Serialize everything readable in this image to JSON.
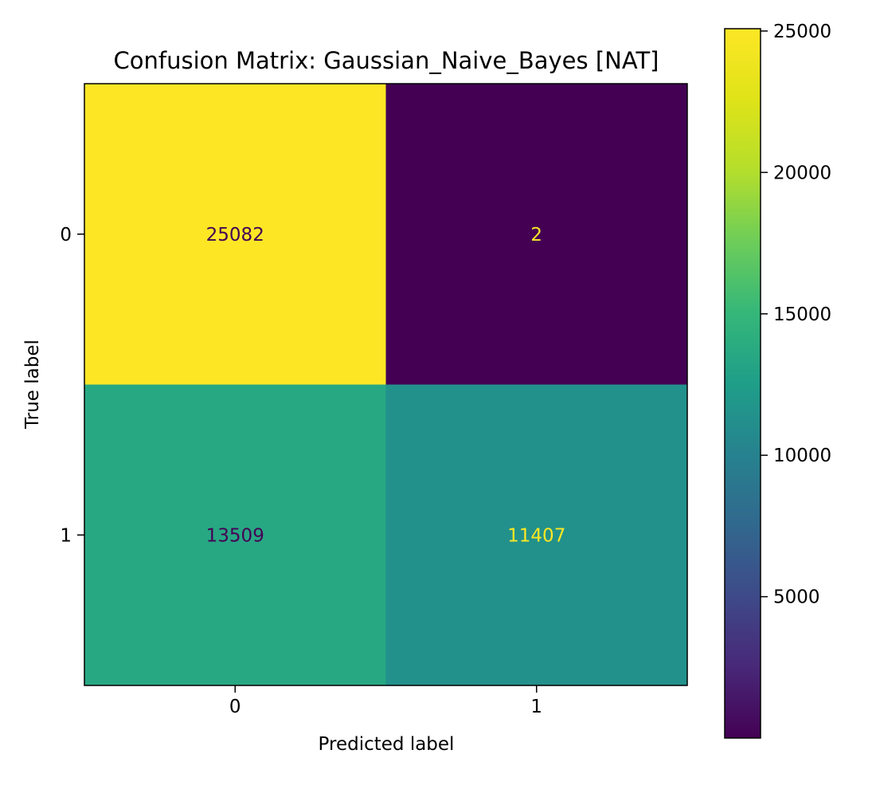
{
  "chart_data": {
    "type": "heatmap",
    "title": "Confusion Matrix: Gaussian_Naive_Bayes [NAT]",
    "xlabel": "Predicted label",
    "ylabel": "True label",
    "x_categories": [
      "0",
      "1"
    ],
    "y_categories": [
      "0",
      "1"
    ],
    "matrix": [
      [
        25082,
        2
      ],
      [
        13509,
        11407
      ]
    ],
    "colormap": "viridis",
    "colorbar": {
      "min": 2,
      "max": 25082,
      "ticks": [
        5000,
        10000,
        15000,
        20000,
        25000
      ],
      "tick_labels": [
        "5000",
        "10000",
        "15000",
        "20000",
        "25000"
      ]
    },
    "grid": false,
    "text_colors": {
      "on_light": "#440154",
      "on_dark": "#fde725"
    }
  }
}
